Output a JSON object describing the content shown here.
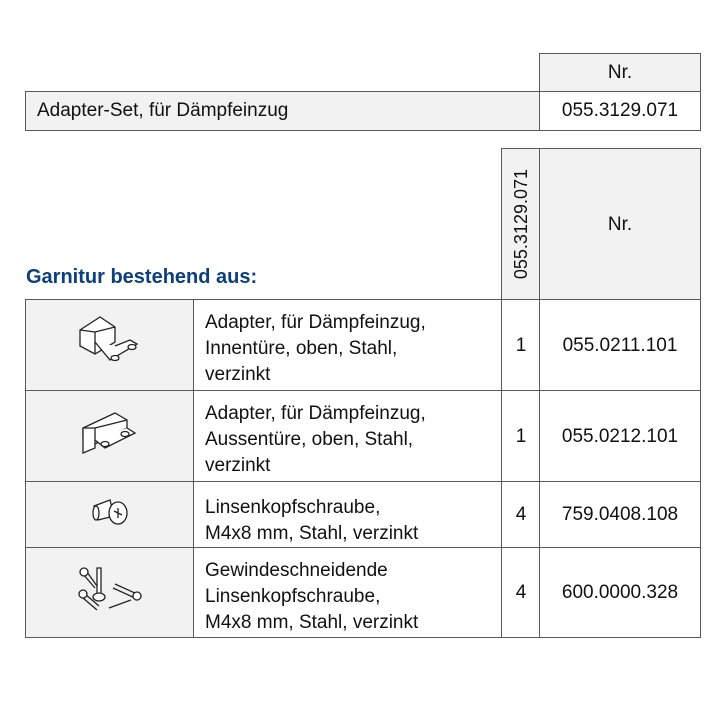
{
  "top_table": {
    "nr_header": "Nr.",
    "item_label": "Adapter-Set, für Dämpfeinzug",
    "item_nr": "055.3129.071"
  },
  "set_title": "Garnitur bestehend aus:",
  "parts_table": {
    "qty_header": "055.3129.071",
    "nr_header": "Nr.",
    "rows": [
      {
        "icon": "adapter-inner-door-icon",
        "lines": [
          "Adapter, für Dämpfeinzug,",
          "Innentüre, oben, Stahl,",
          "verzinkt"
        ],
        "qty": "1",
        "nr": "055.0211.101"
      },
      {
        "icon": "adapter-outer-door-icon",
        "lines": [
          "Adapter, für Dämpfeinzug,",
          "Aussentüre, oben, Stahl,",
          "verzinkt"
        ],
        "qty": "1",
        "nr": "055.0212.101"
      },
      {
        "icon": "pan-head-screw-icon",
        "lines": [
          "Linsenkopfschraube,",
          "M4x8 mm, Stahl, verzinkt"
        ],
        "qty": "4",
        "nr": "759.0408.108"
      },
      {
        "icon": "self-tapping-screws-icon",
        "lines": [
          "Gewindeschneidende",
          "Linsenkopfschraube,",
          "M4x8 mm, Stahl, verzinkt"
        ],
        "qty": "4",
        "nr": "600.0000.328"
      }
    ]
  }
}
